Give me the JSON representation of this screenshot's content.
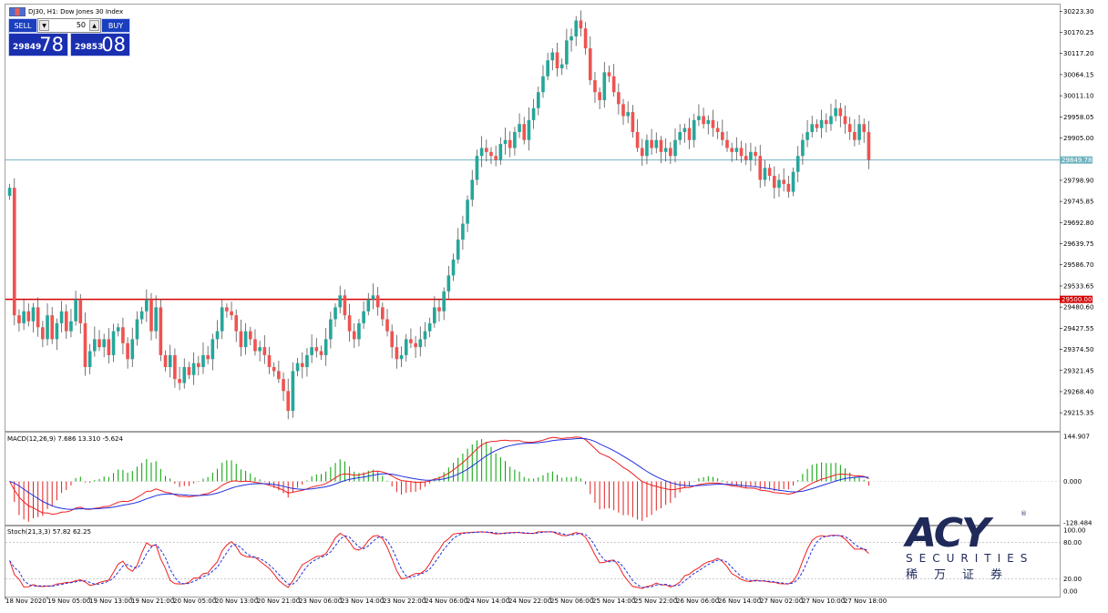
{
  "window": {
    "title": "DJ30, H1:  Dow Jones 30 Index"
  },
  "trade_panel": {
    "sell_label": "SELL",
    "buy_label": "BUY",
    "lot_value": "50",
    "sell_price_small": "29849",
    "sell_price_big": "78",
    "buy_price_small": "29853",
    "buy_price_big": "08"
  },
  "logo": {
    "brand": "ACY",
    "sub": "SECURITIES",
    "chinese": "稀万证券",
    "registered": "®"
  },
  "colors": {
    "bull": "#26a69a",
    "bear": "#ef5350",
    "bid_line": "#6fb3c0",
    "level_line": "#d40000",
    "macd_line": "#ef2020",
    "signal_line": "#2030e0",
    "hist_pos": "#00a000",
    "hist_neg": "#e02020",
    "stoch_main": "#ef2020",
    "stoch_signal": "#2030e0"
  },
  "chart_data": [
    {
      "type": "candlestick",
      "title": "DJ30, H1:  Dow Jones 30 Index",
      "ylim": [
        29170,
        30240
      ],
      "y_ticks": [
        "30223.30",
        "30170.25",
        "30117.20",
        "30064.15",
        "30011.10",
        "29958.05",
        "29905.00",
        "29798.90",
        "29745.85",
        "29692.80",
        "29639.75",
        "29586.70",
        "29533.65",
        "29480.60",
        "29427.55",
        "29374.50",
        "29321.45",
        "29268.40",
        "29215.35"
      ],
      "bid_line": {
        "value": 29849.78,
        "label": "29849.78"
      },
      "level_line": {
        "value": 29500.0,
        "label": "29500.00"
      },
      "x_labels": [
        "18 Nov 2020",
        "19 Nov 05:00",
        "19 Nov 13:00",
        "19 Nov 21:00",
        "20 Nov 05:00",
        "20 Nov 13:00",
        "20 Nov 21:00",
        "23 Nov 06:00",
        "23 Nov 14:00",
        "23 Nov 22:00",
        "24 Nov 06:00",
        "24 Nov 14:00",
        "24 Nov 22:00",
        "25 Nov 06:00",
        "25 Nov 14:00",
        "25 Nov 22:00",
        "26 Nov 06:00",
        "26 Nov 14:00",
        "27 Nov 02:00",
        "27 Nov 10:00",
        "27 Nov 18:00"
      ],
      "closes": [
        29780,
        29460,
        29440,
        29470,
        29445,
        29480,
        29430,
        29400,
        29460,
        29400,
        29440,
        29470,
        29420,
        29445,
        29500,
        29440,
        29330,
        29370,
        29400,
        29380,
        29400,
        29360,
        29420,
        29430,
        29390,
        29350,
        29400,
        29450,
        29470,
        29500,
        29420,
        29480,
        29360,
        29330,
        29360,
        29300,
        29290,
        29330,
        29310,
        29340,
        29330,
        29360,
        29350,
        29400,
        29420,
        29480,
        29470,
        29460,
        29420,
        29380,
        29420,
        29400,
        29370,
        29380,
        29360,
        29330,
        29320,
        29300,
        29270,
        29220,
        29320,
        29340,
        29330,
        29360,
        29380,
        29370,
        29360,
        29400,
        29450,
        29480,
        29510,
        29460,
        29420,
        29400,
        29440,
        29470,
        29500,
        29510,
        29480,
        29450,
        29420,
        29380,
        29350,
        29360,
        29400,
        29390,
        29380,
        29400,
        29420,
        29440,
        29480,
        29470,
        29520,
        29560,
        29600,
        29650,
        29690,
        29750,
        29800,
        29860,
        29880,
        29870,
        29860,
        29850,
        29890,
        29900,
        29880,
        29920,
        29940,
        29900,
        29950,
        29980,
        30020,
        30060,
        30100,
        30120,
        30080,
        30090,
        30150,
        30160,
        30200,
        30180,
        30130,
        30050,
        30020,
        30000,
        30070,
        30060,
        30020,
        29990,
        29960,
        29970,
        29920,
        29880,
        29860,
        29900,
        29880,
        29900,
        29870,
        29880,
        29860,
        29900,
        29920,
        29930,
        29900,
        29950,
        29960,
        29940,
        29950,
        29930,
        29920,
        29900,
        29880,
        29870,
        29880,
        29860,
        29850,
        29870,
        29860,
        29800,
        29830,
        29810,
        29780,
        29800,
        29790,
        29770,
        29820,
        29860,
        29900,
        29920,
        29940,
        29930,
        29950,
        29940,
        29960,
        29980,
        29960,
        29940,
        29920,
        29900,
        29940,
        29920,
        29849.78
      ],
      "series": [
        {
          "name": "",
          "role": "candles"
        }
      ]
    },
    {
      "type": "line",
      "title": "MACD(12,26,9) 7.686 13.310 -5.624",
      "ylim": [
        -128.484,
        144.907
      ],
      "y_ticks": [
        "144.907",
        "0.000",
        "-128.484"
      ],
      "series": [
        {
          "name": "",
          "role": "macd"
        },
        {
          "name": "",
          "role": "signal"
        },
        {
          "name": "",
          "role": "histogram"
        }
      ]
    },
    {
      "type": "line",
      "title": "Stoch(21,3,3) 57.82 62.25",
      "ylim": [
        0,
        100
      ],
      "y_ticks": [
        "100.00",
        "80.00",
        "20.00",
        "0.00"
      ],
      "levels": [
        80,
        20
      ],
      "series": [
        {
          "name": "",
          "role": "main"
        },
        {
          "name": "",
          "role": "signal"
        }
      ]
    }
  ]
}
